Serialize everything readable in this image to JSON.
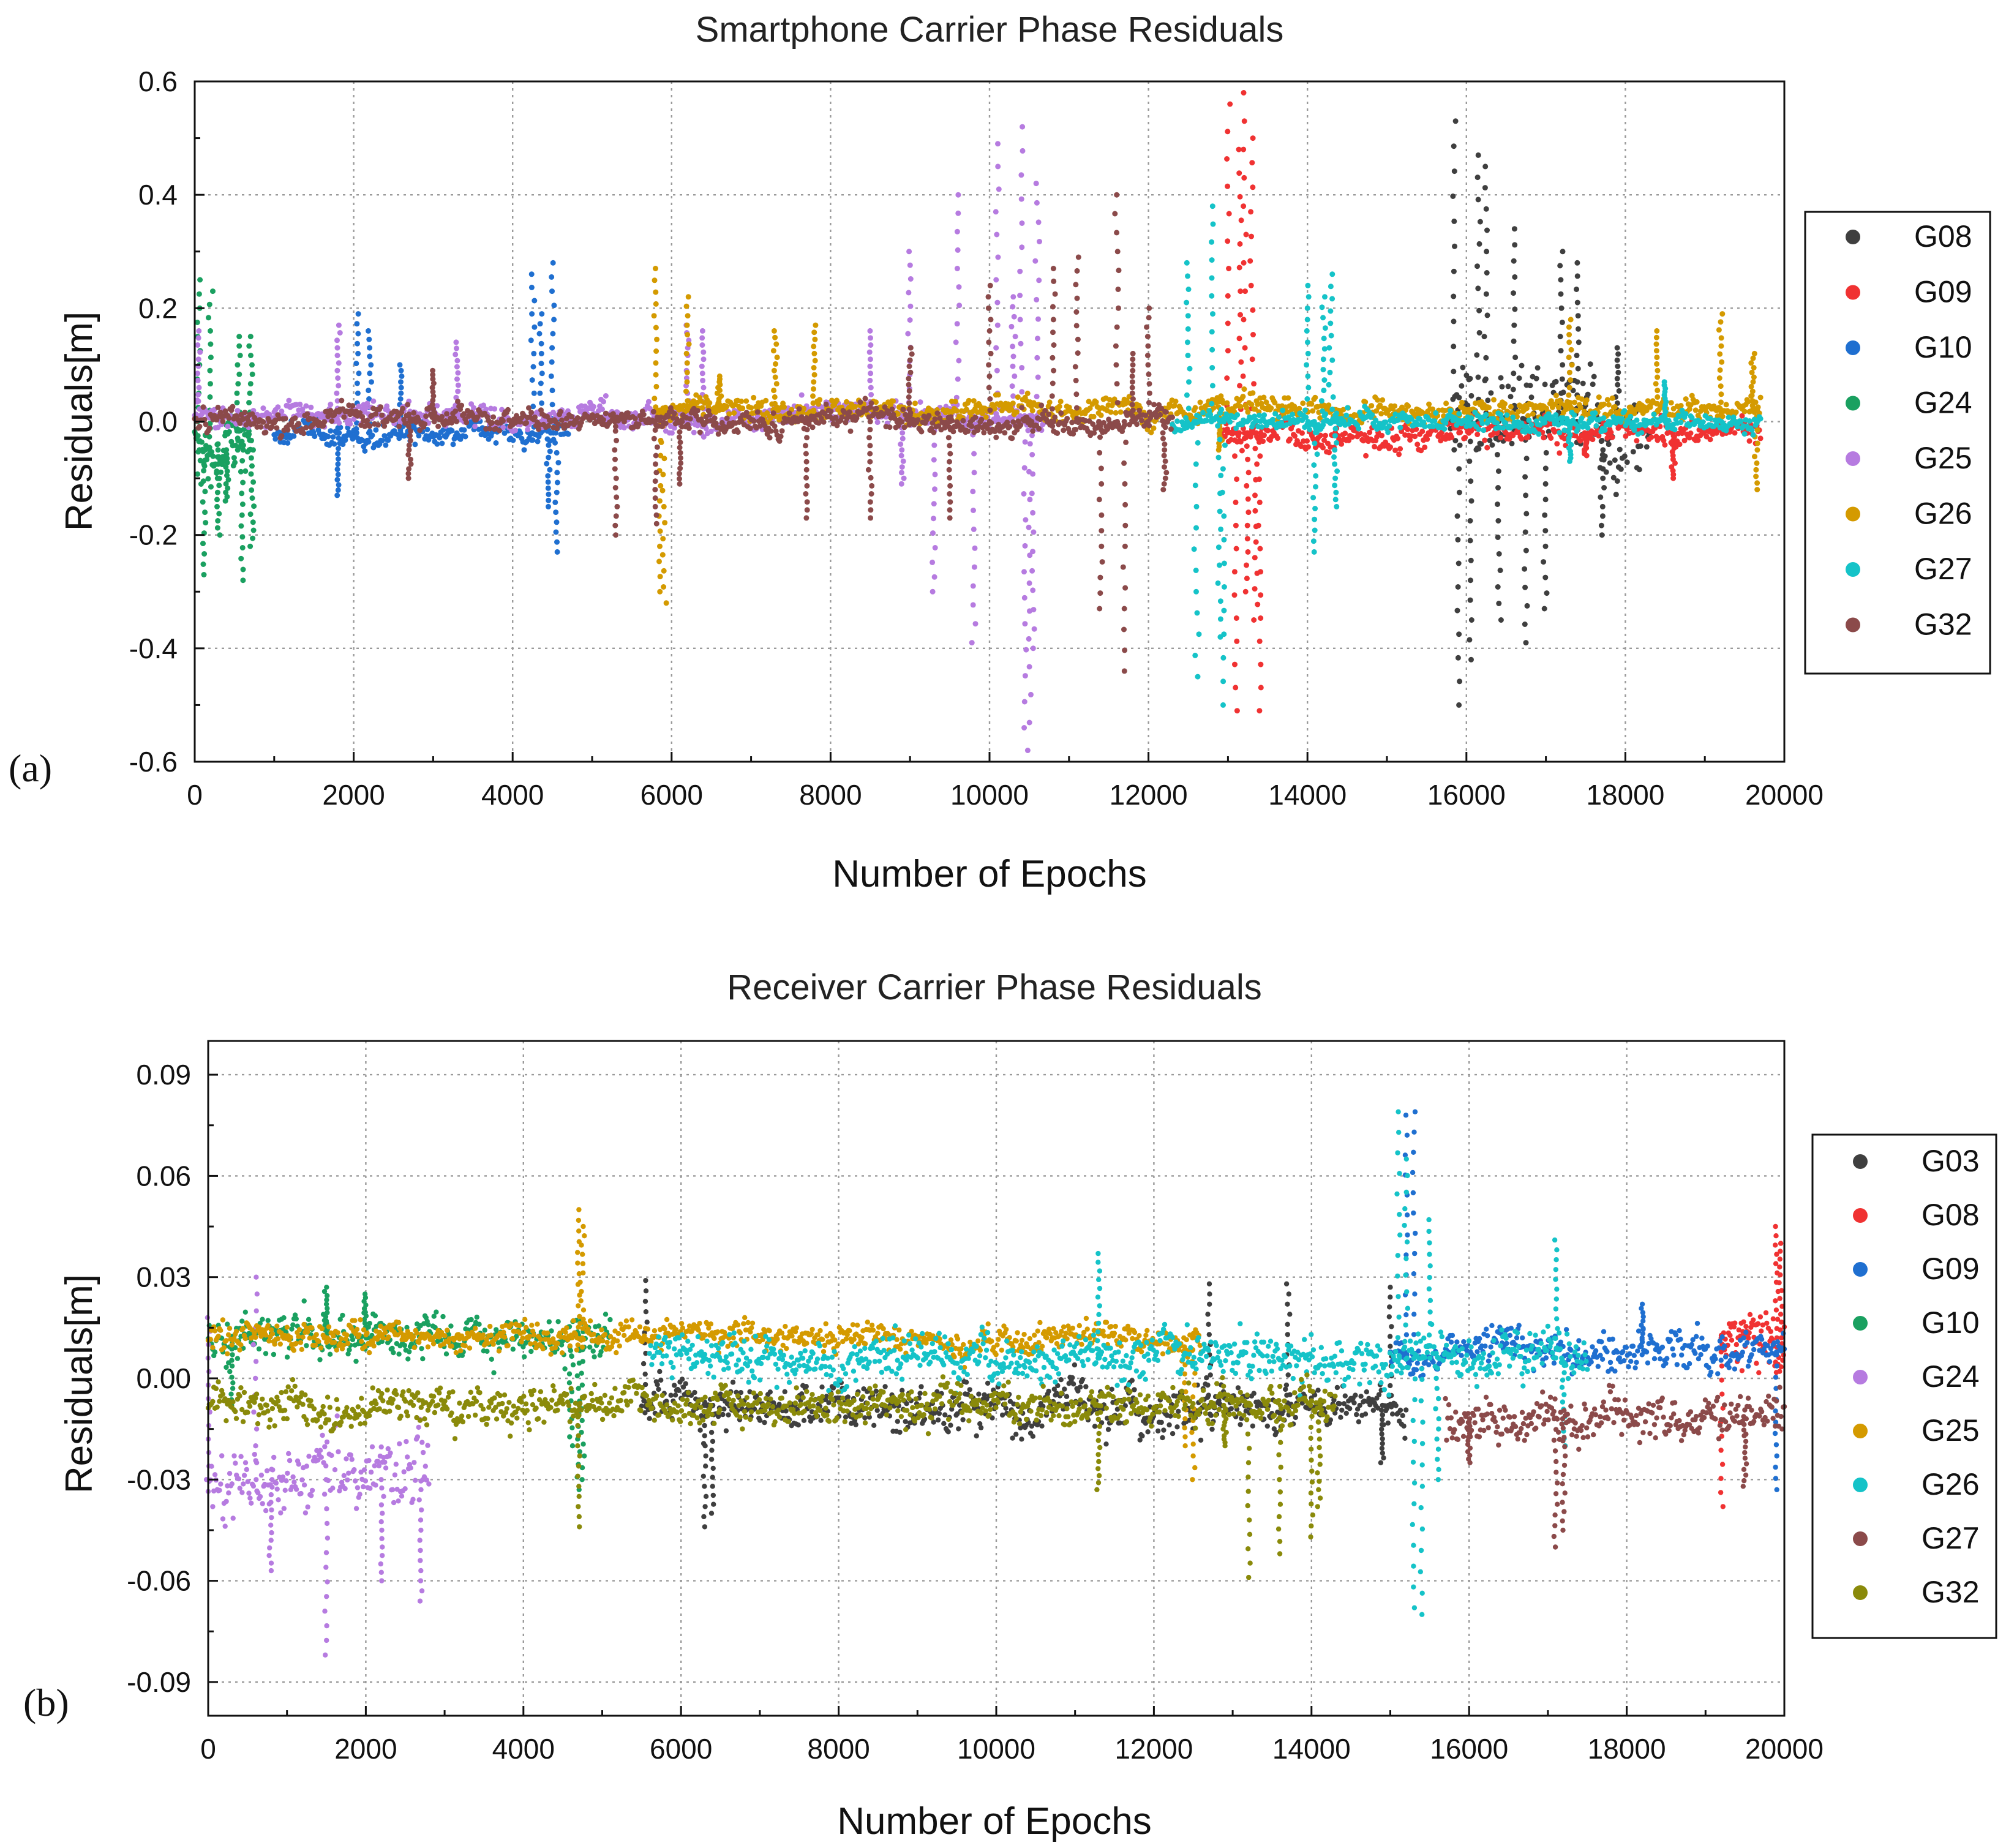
{
  "chart_data": [
    {
      "type": "scatter",
      "panel_label": "(a)",
      "title": "Smartphone Carrier Phase Residuals",
      "xlabel": "Number of Epochs",
      "ylabel": "Residuals[m]",
      "xlim": [
        0,
        20000
      ],
      "ylim": [
        -0.6,
        0.6
      ],
      "xticks": [
        0,
        2000,
        4000,
        6000,
        8000,
        10000,
        12000,
        14000,
        16000,
        18000,
        20000
      ],
      "yticks": [
        -0.6,
        -0.4,
        -0.2,
        0.0,
        0.2,
        0.4,
        0.6
      ],
      "ytick_labels": [
        "-0.6",
        "-0.4",
        "-0.2",
        "0.0",
        "0.2",
        "0.4",
        "0.6"
      ],
      "grid": true,
      "legend_position": "right",
      "series": [
        {
          "name": "G08",
          "color": "#3f3f3f",
          "segments": [
            {
              "x0": 15800,
              "x1": 18300,
              "base": 0.0,
              "amp": 0.12,
              "spikes": [
                [
                  15850,
                  0.53
                ],
                [
                  15900,
                  -0.5
                ],
                [
                  16050,
                  -0.42
                ],
                [
                  16150,
                  0.47
                ],
                [
                  16250,
                  0.45
                ],
                [
                  16400,
                  -0.35
                ],
                [
                  16600,
                  0.34
                ],
                [
                  16750,
                  -0.39
                ],
                [
                  17000,
                  -0.33
                ],
                [
                  17200,
                  0.3
                ],
                [
                  17400,
                  0.28
                ],
                [
                  17700,
                  -0.2
                ],
                [
                  17900,
                  0.13
                ]
              ]
            }
          ]
        },
        {
          "name": "G09",
          "color": "#f03232",
          "segments": [
            {
              "x0": 12900,
              "x1": 19700,
              "base": -0.02,
              "amp": 0.035,
              "spikes": [
                [
                  13000,
                  0.56
                ],
                [
                  13100,
                  -0.51
                ],
                [
                  13200,
                  0.58
                ],
                [
                  13300,
                  0.5
                ],
                [
                  13350,
                  -0.35
                ],
                [
                  13400,
                  -0.51
                ],
                [
                  13250,
                  -0.3
                ],
                [
                  13150,
                  0.48
                ],
                [
                  17500,
                  -0.06
                ],
                [
                  18600,
                  -0.1
                ]
              ]
            }
          ]
        },
        {
          "name": "G10",
          "color": "#1f6fd0",
          "segments": [
            {
              "x0": 1000,
              "x1": 4700,
              "base": -0.02,
              "amp": 0.03,
              "spikes": [
                [
                  1800,
                  -0.13
                ],
                [
                  2050,
                  0.19
                ],
                [
                  2200,
                  0.16
                ],
                [
                  2600,
                  0.1
                ],
                [
                  4250,
                  0.26
                ],
                [
                  4350,
                  0.19
                ],
                [
                  4500,
                  0.28
                ],
                [
                  4550,
                  -0.23
                ],
                [
                  4450,
                  -0.15
                ]
              ]
            }
          ]
        },
        {
          "name": "G24",
          "color": "#1aa060",
          "segments": [
            {
              "x0": 0,
              "x1": 700,
              "base": -0.05,
              "amp": 0.09,
              "spikes": [
                [
                  50,
                  0.25
                ],
                [
                  120,
                  -0.27
                ],
                [
                  200,
                  0.23
                ],
                [
                  300,
                  -0.2
                ],
                [
                  400,
                  -0.14
                ],
                [
                  550,
                  0.15
                ],
                [
                  600,
                  -0.28
                ],
                [
                  700,
                  0.15
                ],
                [
                  720,
                  -0.22
                ]
              ]
            }
          ]
        },
        {
          "name": "G25",
          "color": "#b67be0",
          "segments": [
            {
              "x0": 0,
              "x1": 10700,
              "base": 0.01,
              "amp": 0.03,
              "spikes": [
                [
                  50,
                  0.16
                ],
                [
                  1800,
                  0.17
                ],
                [
                  3300,
                  0.14
                ],
                [
                  6200,
                  0.17
                ],
                [
                  6400,
                  0.16
                ],
                [
                  8500,
                  0.16
                ],
                [
                  9000,
                  0.3
                ],
                [
                  9300,
                  -0.3
                ],
                [
                  9600,
                  0.4
                ],
                [
                  9800,
                  -0.39
                ],
                [
                  10100,
                  0.49
                ],
                [
                  10300,
                  0.22
                ],
                [
                  10400,
                  0.52
                ],
                [
                  10450,
                  -0.54
                ],
                [
                  10500,
                  -0.58
                ],
                [
                  10600,
                  0.42
                ],
                [
                  10550,
                  -0.4
                ],
                [
                  8900,
                  -0.11
                ]
              ]
            }
          ]
        },
        {
          "name": "G26",
          "color": "#d49a00",
          "segments": [
            {
              "x0": 5800,
              "x1": 19700,
              "base": 0.02,
              "amp": 0.03,
              "spikes": [
                [
                  5800,
                  0.27
                ],
                [
                  5850,
                  -0.3
                ],
                [
                  5900,
                  -0.32
                ],
                [
                  6200,
                  0.22
                ],
                [
                  6600,
                  0.08
                ],
                [
                  7300,
                  0.16
                ],
                [
                  7800,
                  0.17
                ],
                [
                  12900,
                  -0.05
                ],
                [
                  17300,
                  0.18
                ],
                [
                  18400,
                  0.16
                ],
                [
                  19200,
                  0.19
                ],
                [
                  19600,
                  0.12
                ],
                [
                  19650,
                  -0.12
                ]
              ]
            }
          ]
        },
        {
          "name": "G27",
          "color": "#15c3c8",
          "segments": [
            {
              "x0": 12300,
              "x1": 19700,
              "base": 0.0,
              "amp": 0.025,
              "spikes": [
                [
                  12500,
                  0.28
                ],
                [
                  12600,
                  -0.45
                ],
                [
                  12800,
                  0.38
                ],
                [
                  12900,
                  -0.38
                ],
                [
                  12950,
                  -0.5
                ],
                [
                  14000,
                  0.24
                ],
                [
                  14100,
                  -0.23
                ],
                [
                  14200,
                  0.22
                ],
                [
                  14300,
                  0.26
                ],
                [
                  14350,
                  -0.15
                ],
                [
                  17300,
                  -0.07
                ],
                [
                  18500,
                  0.07
                ]
              ]
            }
          ]
        },
        {
          "name": "G32",
          "color": "#8b4a4a",
          "segments": [
            {
              "x0": 0,
              "x1": 12300,
              "base": 0.0,
              "amp": 0.03,
              "spikes": [
                [
                  2700,
                  -0.1
                ],
                [
                  3000,
                  0.09
                ],
                [
                  5300,
                  -0.2
                ],
                [
                  5800,
                  -0.18
                ],
                [
                  6100,
                  -0.11
                ],
                [
                  7700,
                  -0.17
                ],
                [
                  8500,
                  -0.17
                ],
                [
                  9000,
                  0.13
                ],
                [
                  9500,
                  -0.17
                ],
                [
                  10000,
                  0.24
                ],
                [
                  10800,
                  0.27
                ],
                [
                  11100,
                  0.29
                ],
                [
                  11400,
                  -0.33
                ],
                [
                  11600,
                  0.4
                ],
                [
                  11700,
                  -0.44
                ],
                [
                  11800,
                  0.12
                ],
                [
                  12000,
                  0.2
                ],
                [
                  12200,
                  -0.12
                ]
              ]
            }
          ]
        }
      ]
    },
    {
      "type": "scatter",
      "panel_label": "(b)",
      "title": "Receiver Carrier Phase Residuals",
      "xlabel": "Number of Epochs",
      "ylabel": "Residuals[m]",
      "xlim": [
        0,
        20000
      ],
      "ylim": [
        -0.1,
        0.1
      ],
      "xticks": [
        0,
        2000,
        4000,
        6000,
        8000,
        10000,
        12000,
        14000,
        16000,
        18000,
        20000
      ],
      "yticks": [
        -0.09,
        -0.06,
        -0.03,
        0.0,
        0.03,
        0.06,
        0.09
      ],
      "ytick_labels": [
        "-0.09",
        "-0.06",
        "-0.03",
        "0.00",
        "0.03",
        "0.06",
        "0.09"
      ],
      "grid": true,
      "legend_position": "right",
      "series": [
        {
          "name": "G03",
          "color": "#3f3f3f",
          "segments": [
            {
              "x0": 5500,
              "x1": 15200,
              "base": -0.008,
              "amp": 0.01,
              "spikes": [
                [
                  5550,
                  0.029
                ],
                [
                  6300,
                  -0.044
                ],
                [
                  6400,
                  -0.04
                ],
                [
                  12700,
                  0.028
                ],
                [
                  13700,
                  0.028
                ],
                [
                  14900,
                  -0.025
                ],
                [
                  15000,
                  0.027
                ]
              ]
            }
          ]
        },
        {
          "name": "G08",
          "color": "#f03232",
          "segments": [
            {
              "x0": 19200,
              "x1": 20000,
              "base": 0.012,
              "amp": 0.012,
              "spikes": [
                [
                  19200,
                  -0.038
                ],
                [
                  19900,
                  0.045
                ],
                [
                  19950,
                  0.04
                ]
              ]
            }
          ]
        },
        {
          "name": "G09",
          "color": "#1f6fd0",
          "segments": [
            {
              "x0": 15000,
              "x1": 20000,
              "base": 0.007,
              "amp": 0.008,
              "spikes": [
                [
                  15200,
                  0.078
                ],
                [
                  15300,
                  0.079
                ],
                [
                  19900,
                  -0.033
                ],
                [
                  18200,
                  0.022
                ]
              ]
            }
          ]
        },
        {
          "name": "G10",
          "color": "#1aa060",
          "segments": [
            {
              "x0": 0,
              "x1": 5100,
              "base": 0.012,
              "amp": 0.01,
              "spikes": [
                [
                  300,
                  -0.008
                ],
                [
                  1500,
                  0.027
                ],
                [
                  2000,
                  0.025
                ],
                [
                  4600,
                  -0.02
                ],
                [
                  4700,
                  -0.033
                ],
                [
                  4750,
                  -0.03
                ]
              ]
            }
          ]
        },
        {
          "name": "G24",
          "color": "#b67be0",
          "segments": [
            {
              "x0": 0,
              "x1": 2800,
              "base": -0.03,
              "amp": 0.016,
              "spikes": [
                [
                  0,
                  0.018
                ],
                [
                  600,
                  0.03
                ],
                [
                  1500,
                  -0.082
                ],
                [
                  2200,
                  -0.06
                ],
                [
                  2700,
                  -0.066
                ],
                [
                  800,
                  -0.057
                ]
              ]
            }
          ]
        },
        {
          "name": "G25",
          "color": "#d49a00",
          "segments": [
            {
              "x0": 0,
              "x1": 12600,
              "base": 0.012,
              "amp": 0.006,
              "spikes": [
                [
                  4700,
                  0.05
                ],
                [
                  4750,
                  0.045
                ],
                [
                  12400,
                  -0.02
                ],
                [
                  12500,
                  -0.03
                ]
              ]
            }
          ]
        },
        {
          "name": "G26",
          "color": "#15c3c8",
          "segments": [
            {
              "x0": 5600,
              "x1": 17500,
              "base": 0.006,
              "amp": 0.01,
              "spikes": [
                [
                  11300,
                  0.037
                ],
                [
                  15100,
                  0.079
                ],
                [
                  15200,
                  0.065
                ],
                [
                  15300,
                  -0.068
                ],
                [
                  15400,
                  -0.07
                ],
                [
                  15500,
                  0.047
                ],
                [
                  15600,
                  -0.03
                ],
                [
                  17100,
                  0.041
                ],
                [
                  17200,
                  -0.02
                ]
              ]
            }
          ]
        },
        {
          "name": "G27",
          "color": "#8b4a4a",
          "segments": [
            {
              "x0": 15700,
              "x1": 20000,
              "base": -0.012,
              "amp": 0.01,
              "spikes": [
                [
                  17100,
                  -0.05
                ],
                [
                  17200,
                  -0.045
                ],
                [
                  19500,
                  -0.032
                ],
                [
                  16000,
                  -0.025
                ]
              ]
            }
          ]
        },
        {
          "name": "G32",
          "color": "#8a8a0a",
          "segments": [
            {
              "x0": 0,
              "x1": 14300,
              "base": -0.008,
              "amp": 0.008,
              "spikes": [
                [
                  4700,
                  -0.044
                ],
                [
                  11300,
                  -0.033
                ],
                [
                  13200,
                  -0.059
                ],
                [
                  13600,
                  -0.052
                ],
                [
                  14000,
                  -0.047
                ],
                [
                  14100,
                  -0.038
                ],
                [
                  12900,
                  -0.02
                ]
              ]
            }
          ]
        }
      ]
    }
  ]
}
